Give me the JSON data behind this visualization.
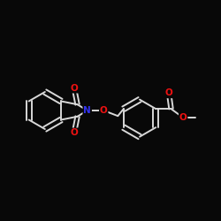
{
  "bg_color": "#080808",
  "bond_color": "#d8d8d8",
  "atom_colors": {
    "O": "#ee1111",
    "N": "#3333ee",
    "C": "#d8d8d8"
  },
  "figsize": [
    2.5,
    2.5
  ],
  "dpi": 100,
  "lw": 1.4,
  "fontsize": 7.5
}
